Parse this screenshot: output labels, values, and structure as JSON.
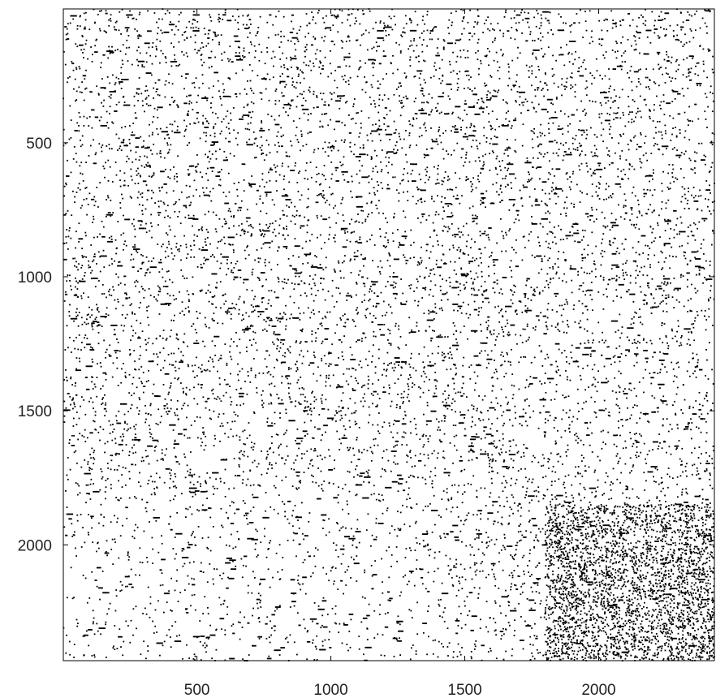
{
  "chart_data": {
    "type": "scatter",
    "subtype": "sparsity-pattern",
    "title": "",
    "xlabel": "",
    "ylabel": "",
    "xlim": [
      1,
      2432
    ],
    "ylim": [
      2432,
      1
    ],
    "y_axis_inverted": true,
    "grid": false,
    "legend": "none",
    "marker_color": "#000000",
    "x_ticks": [
      500,
      1000,
      1500,
      2000
    ],
    "y_ticks": [
      500,
      1000,
      1500,
      2000
    ],
    "x_tick_labels": [
      "500",
      "1000",
      "1500",
      "2000"
    ],
    "y_tick_labels": [
      "500",
      "1000",
      "1500",
      "2000"
    ],
    "matrix_size": [
      2432,
      2432
    ],
    "density_note": "nonzeros scattered across the full matrix; slightly denser cluster near the bottom-right corner"
  }
}
